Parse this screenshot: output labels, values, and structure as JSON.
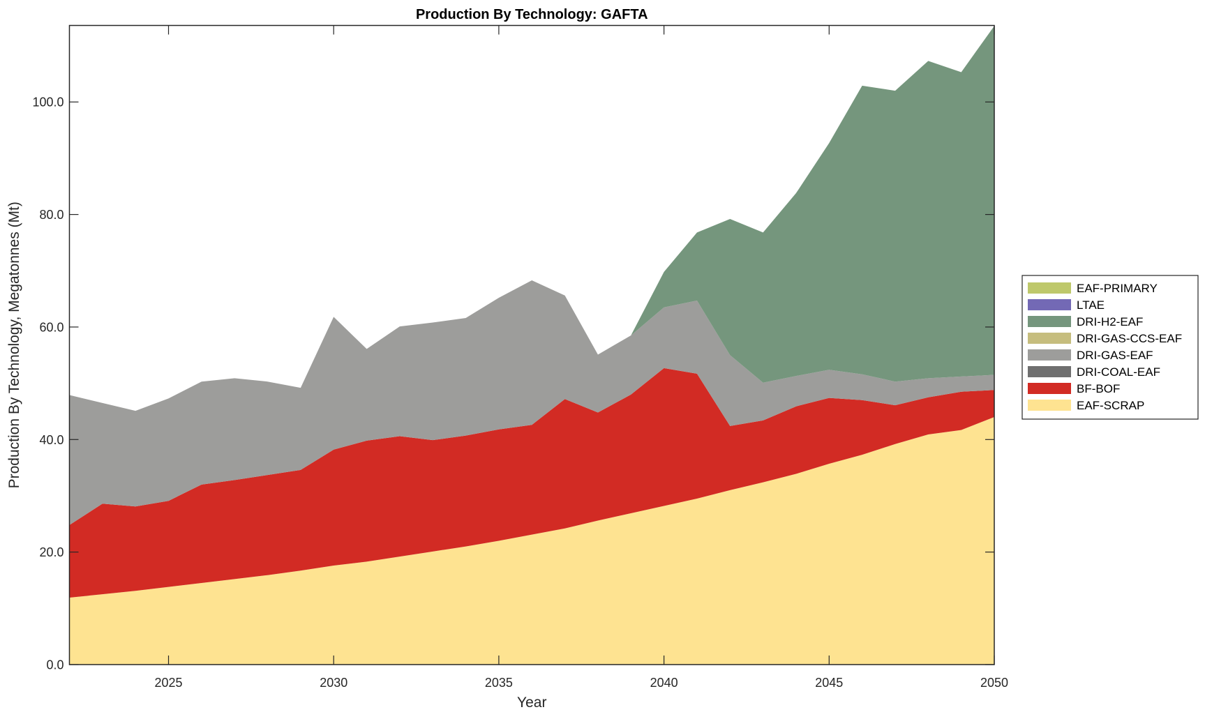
{
  "chart_data": {
    "type": "area",
    "stacked": true,
    "title": "Production By Technology: GAFTA",
    "xlabel": "Year",
    "ylabel": "Production By Technology, Megatonnes (Mt)",
    "xlim": [
      2022,
      2050
    ],
    "ylim": [
      0,
      113.6
    ],
    "xticks": [
      2025,
      2030,
      2035,
      2040,
      2045,
      2050
    ],
    "xtick_labels": [
      "2025",
      "2030",
      "2035",
      "2040",
      "2045",
      "2050"
    ],
    "yticks": [
      0,
      20,
      40,
      60,
      80,
      100
    ],
    "ytick_labels": [
      "0.0",
      "20.0",
      "40.0",
      "60.0",
      "80.0",
      "100.0"
    ],
    "grid": false,
    "legend_position": "right",
    "x": [
      2022,
      2023,
      2024,
      2025,
      2026,
      2027,
      2028,
      2029,
      2030,
      2031,
      2032,
      2033,
      2034,
      2035,
      2036,
      2037,
      2038,
      2039,
      2040,
      2041,
      2042,
      2043,
      2044,
      2045,
      2046,
      2047,
      2048,
      2049,
      2050
    ],
    "series": [
      {
        "name": "EAF-SCRAP",
        "color": "#fee391",
        "values": [
          11.9,
          12.5,
          13.1,
          13.8,
          14.5,
          15.2,
          15.9,
          16.7,
          17.6,
          18.3,
          19.2,
          20.1,
          21.0,
          22.0,
          23.1,
          24.2,
          25.6,
          26.9,
          28.2,
          29.5,
          31.0,
          32.4,
          33.9,
          35.7,
          37.3,
          39.2,
          40.9,
          41.7,
          44.0
        ]
      },
      {
        "name": "BF-BOF",
        "color": "#d22b24",
        "values": [
          12.9,
          16.1,
          15.0,
          15.3,
          17.5,
          17.6,
          17.8,
          17.9,
          20.6,
          21.5,
          21.4,
          19.8,
          19.7,
          19.8,
          19.5,
          23.0,
          19.2,
          21.1,
          24.5,
          22.2,
          11.4,
          11.0,
          12.0,
          11.7,
          9.7,
          6.9,
          6.6,
          6.8,
          4.8
        ]
      },
      {
        "name": "DRI-COAL-EAF",
        "color": "#6f6f6f",
        "values": [
          0,
          0,
          0,
          0,
          0,
          0,
          0,
          0,
          0,
          0,
          0,
          0,
          0,
          0,
          0,
          0,
          0,
          0,
          0,
          0,
          0,
          0,
          0,
          0,
          0,
          0,
          0,
          0,
          0
        ]
      },
      {
        "name": "DRI-GAS-EAF",
        "color": "#9d9d9b",
        "values": [
          23.1,
          17.9,
          17.0,
          18.2,
          18.3,
          18.1,
          16.6,
          14.6,
          23.6,
          16.3,
          19.5,
          20.9,
          20.9,
          23.4,
          25.7,
          18.4,
          10.3,
          10.5,
          10.8,
          13.0,
          12.6,
          6.7,
          5.4,
          5.0,
          4.6,
          4.2,
          3.4,
          2.7,
          2.7
        ]
      },
      {
        "name": "DRI-GAS-CCS-EAF",
        "color": "#c6bd7e",
        "values": [
          0,
          0,
          0,
          0,
          0,
          0,
          0,
          0,
          0,
          0,
          0,
          0,
          0,
          0,
          0,
          0,
          0,
          0,
          0,
          0,
          0,
          0,
          0,
          0,
          0,
          0,
          0,
          0,
          0
        ]
      },
      {
        "name": "DRI-H2-EAF",
        "color": "#75967d",
        "values": [
          0,
          0,
          0,
          0,
          0,
          0,
          0,
          0,
          0,
          0,
          0,
          0,
          0,
          0,
          0,
          0,
          0,
          0,
          6.3,
          12.1,
          24.2,
          26.7,
          32.5,
          40.3,
          51.3,
          51.7,
          56.4,
          54.1,
          62.0
        ]
      },
      {
        "name": "LTAE",
        "color": "#7369b5",
        "values": [
          0,
          0,
          0,
          0,
          0,
          0,
          0,
          0,
          0,
          0,
          0,
          0,
          0,
          0,
          0,
          0,
          0,
          0,
          0,
          0,
          0,
          0,
          0,
          0,
          0,
          0,
          0,
          0,
          0
        ]
      },
      {
        "name": "EAF-PRIMARY",
        "color": "#bec86b",
        "values": [
          0,
          0,
          0,
          0,
          0,
          0,
          0,
          0,
          0,
          0,
          0,
          0,
          0,
          0,
          0,
          0,
          0,
          0,
          0,
          0,
          0,
          0,
          0,
          0,
          0,
          0,
          0,
          0,
          0
        ]
      }
    ],
    "legend_order": [
      "EAF-PRIMARY",
      "LTAE",
      "DRI-H2-EAF",
      "DRI-GAS-CCS-EAF",
      "DRI-GAS-EAF",
      "DRI-COAL-EAF",
      "BF-BOF",
      "EAF-SCRAP"
    ]
  }
}
